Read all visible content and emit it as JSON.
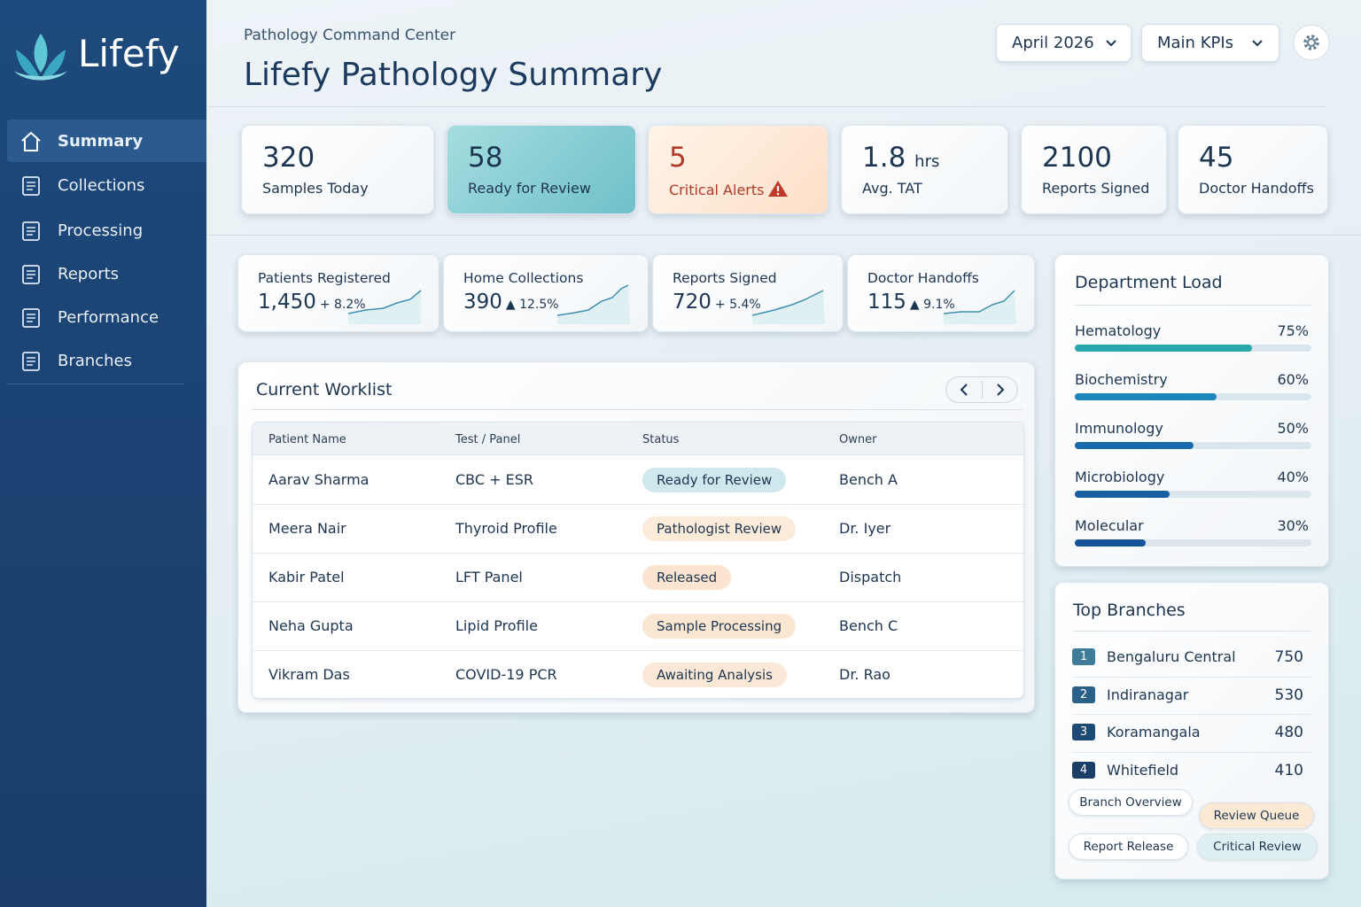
{
  "brand": "Lifefy",
  "nav": [
    "Summary",
    "Collections",
    "Processing",
    "Reports",
    "Performance",
    "Branches"
  ],
  "header": {
    "subtitle": "Pathology Command Center",
    "title": "Lifefy Pathology Summary",
    "month": "April 2026",
    "view": "Main KPIs"
  },
  "kpis": [
    {
      "value": "320",
      "label": "Samples Today"
    },
    {
      "value": "58",
      "label": "Ready for Review"
    },
    {
      "value": "5",
      "label": "Critical Alerts"
    },
    {
      "value": "1.8",
      "unit": "hrs",
      "label": "Avg. TAT"
    },
    {
      "value": "2100",
      "label": "Reports Signed"
    },
    {
      "value": "45",
      "label": "Doctor Handoffs"
    }
  ],
  "trends": [
    {
      "label": "Patients Registered",
      "value": "1,450",
      "change": "+ 8.2%"
    },
    {
      "label": "Home Collections",
      "value": "390",
      "change": "▲ 12.5%"
    },
    {
      "label": "Reports Signed",
      "value": "720",
      "change": "+ 5.4%"
    },
    {
      "label": "Doctor Handoffs",
      "value": "115",
      "change": "▲ 9.1%"
    }
  ],
  "worklist": {
    "title": "Current Worklist",
    "columns": [
      "Patient Name",
      "Test / Panel",
      "Status",
      "Owner"
    ],
    "rows": [
      [
        "Aarav Sharma",
        "CBC + ESR",
        "Ready for Review",
        "Bench A"
      ],
      [
        "Meera Nair",
        "Thyroid Profile",
        "Pathologist Review",
        "Dr. Iyer"
      ],
      [
        "Kabir Patel",
        "LFT Panel",
        "Released",
        "Dispatch"
      ],
      [
        "Neha Gupta",
        "Lipid Profile",
        "Sample Processing",
        "Bench C"
      ],
      [
        "Vikram Das",
        "COVID-19 PCR",
        "Awaiting Analysis",
        "Dr. Rao"
      ]
    ]
  },
  "department_load": {
    "title": "Department Load",
    "items": [
      {
        "name": "Hematology",
        "value": 75,
        "label": "75%"
      },
      {
        "name": "Biochemistry",
        "value": 60,
        "label": "60%"
      },
      {
        "name": "Immunology",
        "value": 50,
        "label": "50%"
      },
      {
        "name": "Microbiology",
        "value": 40,
        "label": "40%"
      },
      {
        "name": "Molecular",
        "value": 30,
        "label": "30%"
      }
    ]
  },
  "top_branches": {
    "title": "Top Branches",
    "items": [
      {
        "rank": "1",
        "name": "Bengaluru Central",
        "value": "750"
      },
      {
        "rank": "2",
        "name": "Indiranagar",
        "value": "530"
      },
      {
        "rank": "3",
        "name": "Koramangala",
        "value": "480"
      },
      {
        "rank": "4",
        "name": "Whitefield",
        "value": "410"
      }
    ]
  },
  "actions": [
    "Branch Overview",
    "Review Queue",
    "Report Release",
    "Critical Review"
  ]
}
